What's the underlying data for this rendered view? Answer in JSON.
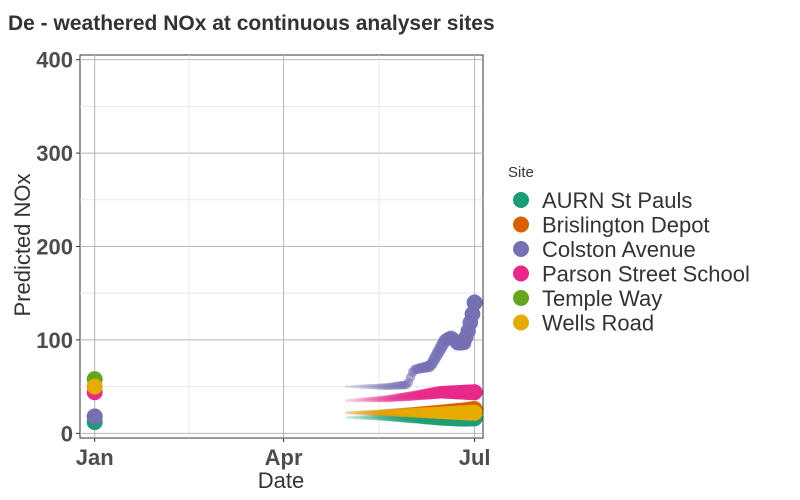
{
  "chart_data": {
    "type": "line",
    "title": "De - weathered NOx at continuous analyser sites",
    "xlabel": "Date",
    "ylabel": "Predicted NOx",
    "x_tick_labels": [
      {
        "date": "2023-01-01",
        "label": "Jan"
      },
      {
        "date": "2023-04-01",
        "label": "Apr"
      },
      {
        "date": "2023-07-01",
        "label": "Jul"
      }
    ],
    "xlim": [
      "2022-12-25",
      "2023-07-05"
    ],
    "ylim": [
      -5,
      405
    ],
    "y_ticks": [
      0,
      100,
      200,
      300,
      400
    ],
    "grid": true,
    "legend": {
      "title": "Site",
      "position": "right"
    },
    "series": [
      {
        "name": "AURN St Pauls",
        "color": "#1B9E77",
        "points": [
          [
            "2023-01-01",
            12
          ],
          [
            "2023-05-01",
            17
          ],
          [
            "2023-05-15",
            17
          ],
          [
            "2023-06-01",
            16
          ],
          [
            "2023-06-15",
            15
          ],
          [
            "2023-06-25",
            15
          ],
          [
            "2023-07-01",
            16
          ]
        ]
      },
      {
        "name": "Brislington Depot",
        "color": "#D95F02",
        "points": [
          [
            "2023-01-01",
            18
          ],
          [
            "2023-05-01",
            22
          ],
          [
            "2023-05-15",
            22
          ],
          [
            "2023-06-01",
            23
          ],
          [
            "2023-06-15",
            24
          ],
          [
            "2023-06-25",
            25
          ],
          [
            "2023-07-01",
            26
          ]
        ]
      },
      {
        "name": "Colston Avenue",
        "color": "#7570B3",
        "points": [
          [
            "2023-01-01",
            18
          ],
          [
            "2023-05-01",
            50
          ],
          [
            "2023-05-20",
            50
          ],
          [
            "2023-05-30",
            52
          ],
          [
            "2023-06-02",
            68
          ],
          [
            "2023-06-10",
            72
          ],
          [
            "2023-06-14",
            88
          ],
          [
            "2023-06-17",
            100
          ],
          [
            "2023-06-20",
            103
          ],
          [
            "2023-06-23",
            96
          ],
          [
            "2023-06-26",
            97
          ],
          [
            "2023-06-28",
            110
          ],
          [
            "2023-06-30",
            128
          ],
          [
            "2023-07-01",
            140
          ]
        ]
      },
      {
        "name": "Parson Street School",
        "color": "#E7298A",
        "points": [
          [
            "2023-01-01",
            44
          ],
          [
            "2023-05-01",
            35
          ],
          [
            "2023-05-20",
            37
          ],
          [
            "2023-06-01",
            40
          ],
          [
            "2023-06-15",
            44
          ],
          [
            "2023-06-25",
            44
          ],
          [
            "2023-07-01",
            44
          ]
        ]
      },
      {
        "name": "Temple Way",
        "color": "#66A61E",
        "points": [
          [
            "2023-01-01",
            58
          ]
        ]
      },
      {
        "name": "Wells Road",
        "color": "#E6AB02",
        "points": [
          [
            "2023-01-01",
            50
          ],
          [
            "2023-05-01",
            22
          ],
          [
            "2023-06-01",
            22
          ],
          [
            "2023-07-01",
            22
          ]
        ]
      }
    ]
  }
}
